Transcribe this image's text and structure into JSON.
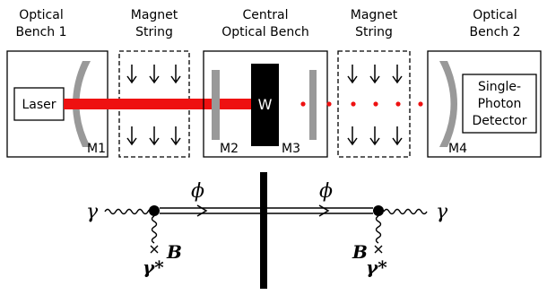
{
  "top": {
    "optical_bench_1": {
      "line1": "Optical",
      "line2": "Bench 1"
    },
    "magnet_string_1": {
      "line1": "Magnet",
      "line2": "String"
    },
    "central_bench": {
      "line1": "Central",
      "line2": "Optical Bench"
    },
    "magnet_string_2": {
      "line1": "Magnet",
      "line2": "String"
    },
    "optical_bench_2": {
      "line1": "Optical",
      "line2": "Bench 2"
    },
    "laser_label": "Laser",
    "wall_label": "W",
    "detector": {
      "line1": "Single-",
      "line2": "Photon",
      "line3": "Detector"
    },
    "mirrors": {
      "m1": "M1",
      "m2": "M2",
      "m3": "M3",
      "m4": "M4"
    }
  },
  "feynman": {
    "photon_in": "γ",
    "photon_out": "γ",
    "axion_left": "ϕ",
    "axion_right": "ϕ",
    "field_left": "B",
    "field_right": "B",
    "virtual_left": "γ*",
    "virtual_right": "γ*"
  },
  "colors": {
    "laser_beam": "#ee1111",
    "mirror": "#999999",
    "wall": "#000000"
  }
}
